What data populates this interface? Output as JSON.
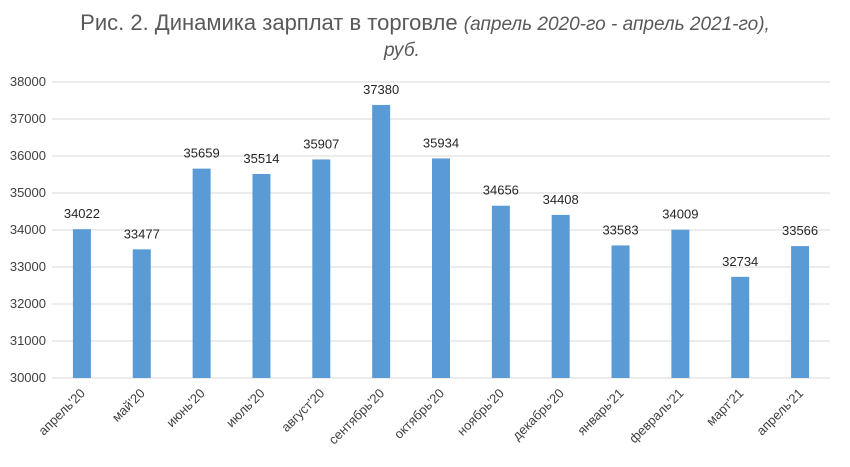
{
  "chart_data": {
    "type": "bar",
    "title": "Рис. 2. Динамика зарплат в торговле",
    "subtitle_part1": "(апрель 2020-го - апрель 2021-го),",
    "subtitle_part2": "руб.",
    "categories": [
      "апрель'20",
      "май'20",
      "июнь'20",
      "июль'20",
      "август'20",
      "сентябрь'20",
      "октябрь'20",
      "ноябрь'20",
      "декабрь'20",
      "январь'21",
      "февраль'21",
      "март'21",
      "апрель'21"
    ],
    "values": [
      34022,
      33477,
      35659,
      35514,
      35907,
      37380,
      35934,
      34656,
      34408,
      33583,
      34009,
      32734,
      33566
    ],
    "ylim": [
      30000,
      38000
    ],
    "yticks": [
      30000,
      31000,
      32000,
      33000,
      34000,
      35000,
      36000,
      37000,
      38000
    ],
    "grid": true,
    "bar_color": "#5B9BD5",
    "grid_color": "#D9D9D9"
  }
}
